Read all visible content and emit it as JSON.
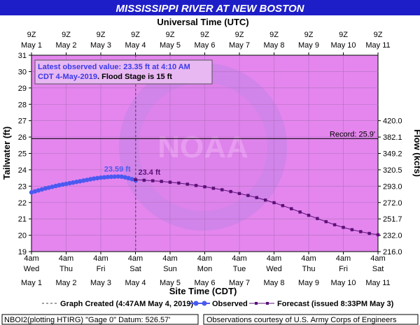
{
  "title": "MISSISSIPPI RIVER AT NEW BOSTON",
  "top_axis_title": "Universal Time (UTC)",
  "top_ticks": [
    {
      "hour": "9Z",
      "date": "May 1"
    },
    {
      "hour": "9Z",
      "date": "May 2"
    },
    {
      "hour": "9Z",
      "date": "May 3"
    },
    {
      "hour": "9Z",
      "date": "May 4"
    },
    {
      "hour": "9Z",
      "date": "May 5"
    },
    {
      "hour": "9Z",
      "date": "May 6"
    },
    {
      "hour": "9Z",
      "date": "May 7"
    },
    {
      "hour": "9Z",
      "date": "May 8"
    },
    {
      "hour": "9Z",
      "date": "May 9"
    },
    {
      "hour": "9Z",
      "date": "May 10"
    },
    {
      "hour": "9Z",
      "date": "May 11"
    }
  ],
  "bottom_ticks": [
    {
      "time": "4am",
      "day": "Wed",
      "date": "May 1"
    },
    {
      "time": "4am",
      "day": "Thu",
      "date": "May 2"
    },
    {
      "time": "4am",
      "day": "Fri",
      "date": "May 3"
    },
    {
      "time": "4am",
      "day": "Sat",
      "date": "May 4"
    },
    {
      "time": "4am",
      "day": "Sun",
      "date": "May 5"
    },
    {
      "time": "4am",
      "day": "Mon",
      "date": "May 6"
    },
    {
      "time": "4am",
      "day": "Tue",
      "date": "May 7"
    },
    {
      "time": "4am",
      "day": "Wed",
      "date": "May 8"
    },
    {
      "time": "4am",
      "day": "Thu",
      "date": "May 9"
    },
    {
      "time": "4am",
      "day": "Fri",
      "date": "May 10"
    },
    {
      "time": "4am",
      "day": "Sat",
      "date": "May 11"
    }
  ],
  "bottom_axis_title": "Site Time (CDT)",
  "left_axis_title": "Tailwater (ft)",
  "right_axis_title": "Flow (kcfs)",
  "info_box": {
    "line1": "Latest observed value: 23.35 ft at 4:10 AM",
    "line2a": "CDT 4-May-2019",
    "line2b": ". Flood Stage is 15 ft"
  },
  "record_label": "Record: 25.9'",
  "peak_label": "23.59 ft",
  "forecast_start_label": "23.4 ft",
  "legend": {
    "created": "Graph Created (4:47AM May 4, 2019)",
    "observed": "Observed",
    "forecast": "Forecast (issued 8:33PM May 3)"
  },
  "footer_left": "NBOI2(plotting HTIRG) \"Gage 0\" Datum:  526.57'",
  "footer_right": "Observations courtesy of U.S. Army Corps of Engineers",
  "watermark": "NOAA",
  "colors": {
    "plot_bg": "#e486ee",
    "title_bg": "#1e1ec8",
    "observed": "#4a5af0",
    "forecast": "#5a1078",
    "record": "#000000",
    "gridline": "#b070c0"
  },
  "chart_data": {
    "type": "line",
    "x_unit": "days since May 1, 4am CDT",
    "ylim": [
      19,
      31
    ],
    "yticks": [
      19,
      20,
      21,
      22,
      23,
      24,
      25,
      26,
      27,
      28,
      29,
      30,
      31
    ],
    "flow_ticks": [
      {
        "stage": 19,
        "label": "216.0"
      },
      {
        "stage": 20,
        "label": "232.0"
      },
      {
        "stage": 21,
        "label": "251.7"
      },
      {
        "stage": 22,
        "label": "272.0"
      },
      {
        "stage": 23,
        "label": "293.0"
      },
      {
        "stage": 24,
        "label": "320.5"
      },
      {
        "stage": 25,
        "label": "349.2"
      },
      {
        "stage": 26,
        "label": "382.1"
      },
      {
        "stage": 27,
        "label": "420.0"
      }
    ],
    "record_stage": 25.9,
    "observed_time_offset_days": 3.007,
    "series": [
      {
        "name": "Observed",
        "points": [
          [
            0.0,
            22.62
          ],
          [
            0.1,
            22.68
          ],
          [
            0.2,
            22.74
          ],
          [
            0.3,
            22.8
          ],
          [
            0.4,
            22.86
          ],
          [
            0.5,
            22.91
          ],
          [
            0.6,
            22.96
          ],
          [
            0.7,
            23.01
          ],
          [
            0.8,
            23.06
          ],
          [
            0.9,
            23.1
          ],
          [
            1.0,
            23.14
          ],
          [
            1.1,
            23.18
          ],
          [
            1.2,
            23.22
          ],
          [
            1.3,
            23.26
          ],
          [
            1.4,
            23.3
          ],
          [
            1.5,
            23.34
          ],
          [
            1.6,
            23.38
          ],
          [
            1.7,
            23.42
          ],
          [
            1.8,
            23.46
          ],
          [
            1.9,
            23.49
          ],
          [
            2.0,
            23.52
          ],
          [
            2.1,
            23.54
          ],
          [
            2.2,
            23.56
          ],
          [
            2.3,
            23.57
          ],
          [
            2.4,
            23.58
          ],
          [
            2.5,
            23.59
          ],
          [
            2.6,
            23.58
          ],
          [
            2.7,
            23.54
          ],
          [
            2.8,
            23.49
          ],
          [
            2.9,
            23.43
          ],
          [
            3.007,
            23.35
          ]
        ]
      },
      {
        "name": "Forecast",
        "points": [
          [
            3.0,
            23.4
          ],
          [
            3.25,
            23.36
          ],
          [
            3.5,
            23.33
          ],
          [
            3.75,
            23.29
          ],
          [
            4.0,
            23.24
          ],
          [
            4.25,
            23.19
          ],
          [
            4.5,
            23.12
          ],
          [
            4.75,
            23.04
          ],
          [
            5.0,
            22.96
          ],
          [
            5.25,
            22.87
          ],
          [
            5.5,
            22.78
          ],
          [
            5.75,
            22.67
          ],
          [
            6.0,
            22.55
          ],
          [
            6.25,
            22.43
          ],
          [
            6.5,
            22.3
          ],
          [
            6.75,
            22.15
          ],
          [
            7.0,
            21.99
          ],
          [
            7.25,
            21.81
          ],
          [
            7.5,
            21.62
          ],
          [
            7.75,
            21.42
          ],
          [
            8.0,
            21.22
          ],
          [
            8.25,
            21.02
          ],
          [
            8.5,
            20.83
          ],
          [
            8.75,
            20.64
          ],
          [
            9.0,
            20.48
          ],
          [
            9.25,
            20.34
          ],
          [
            9.5,
            20.22
          ],
          [
            9.75,
            20.11
          ],
          [
            10.0,
            20.03
          ]
        ]
      }
    ]
  }
}
